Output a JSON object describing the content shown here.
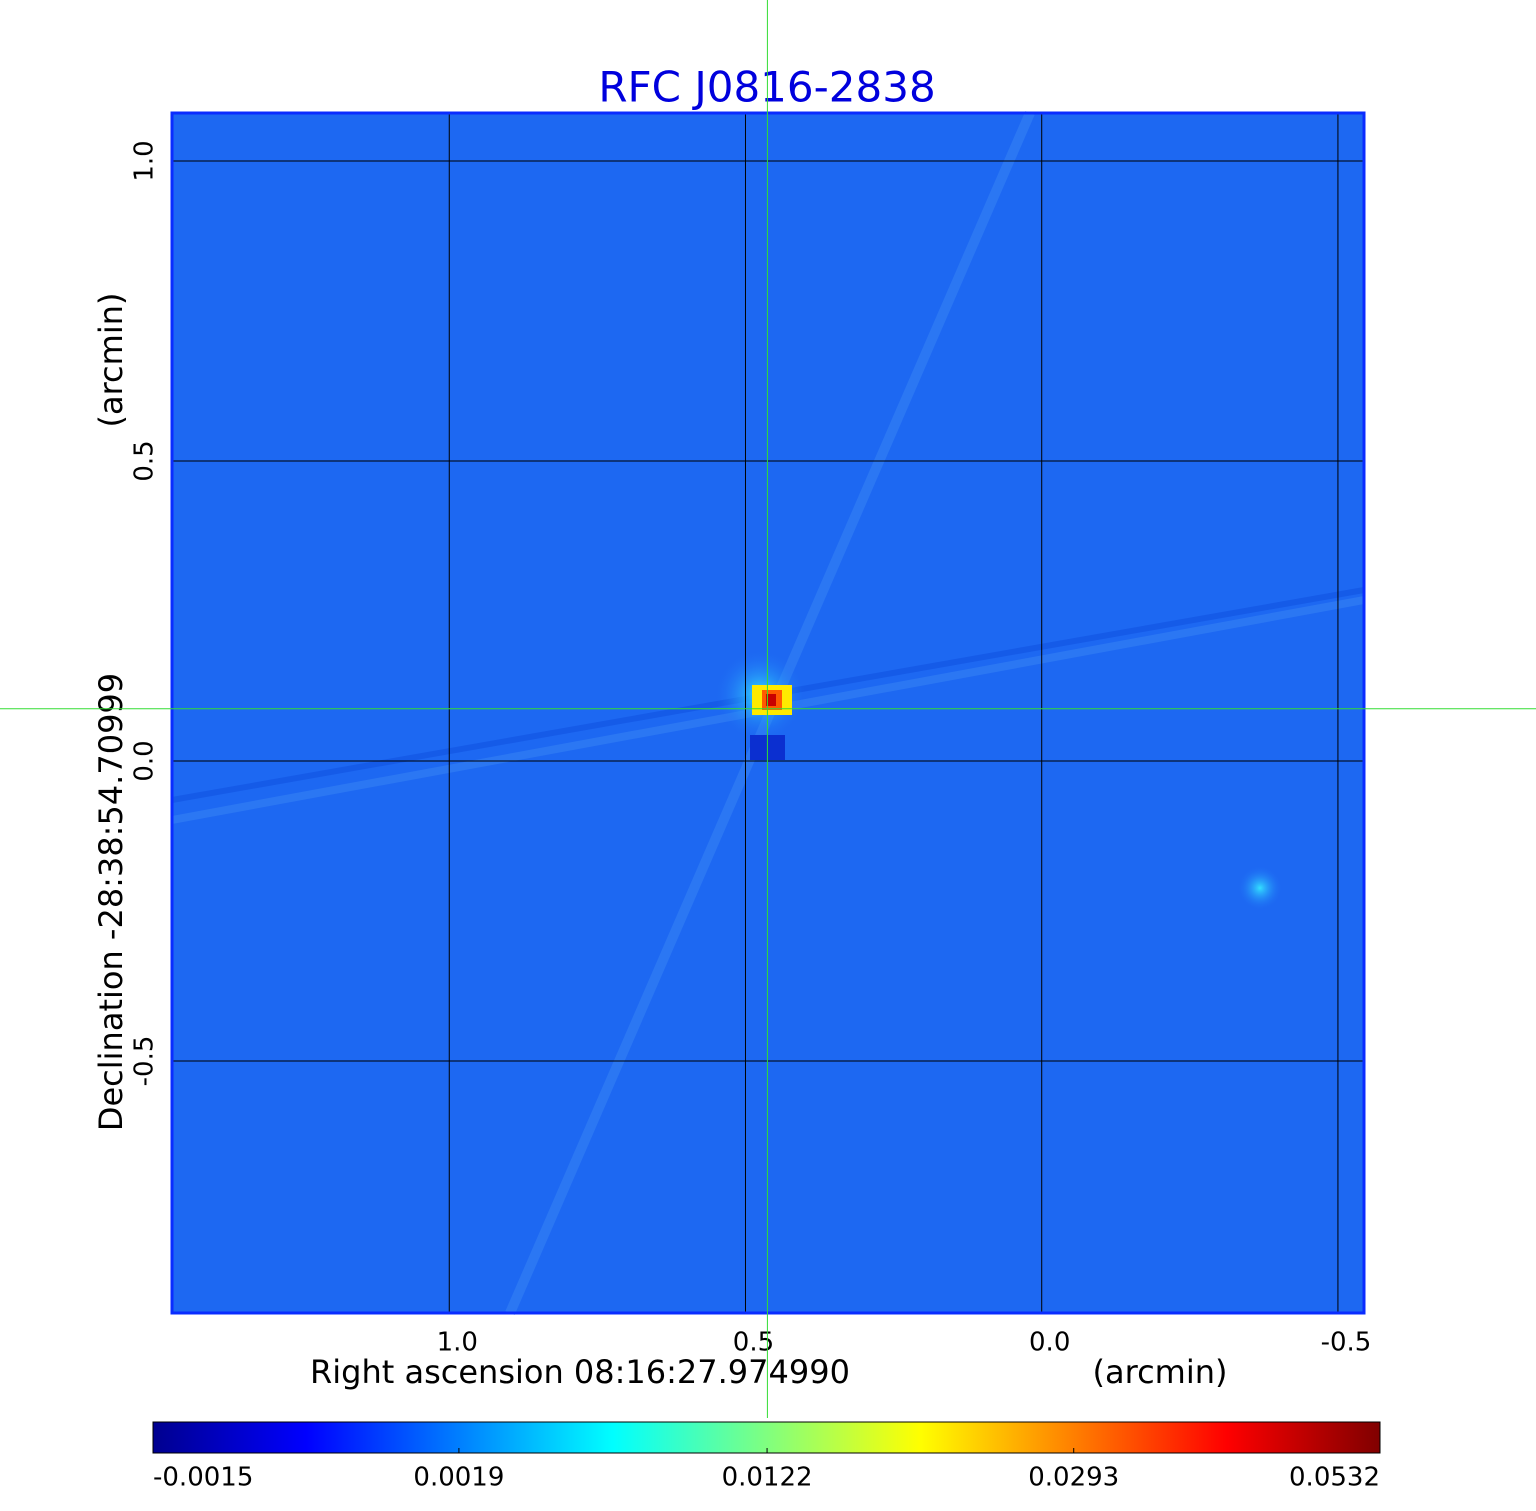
{
  "chart_data": {
    "type": "image",
    "title": "RFC J0816-2838",
    "x_label": "Right ascension  08:16:27.974990",
    "x_unit": "(arcmin)",
    "y_label": "Declination  -28:38:54.70999",
    "y_unit": "(arcmin)",
    "xlim": [
      1.468,
      -0.544
    ],
    "ylim": [
      -0.92,
      1.08
    ],
    "xticks": [
      {
        "value": 1,
        "label": "1.0"
      },
      0.5,
      {
        "value": 0,
        "label": "0.0"
      },
      -0.5
    ],
    "yticks": [
      {
        "value": 1,
        "label": "1.0"
      },
      0.5,
      {
        "value": 0,
        "label": "0.0"
      },
      -0.5
    ],
    "grid": true,
    "crosshair": {
      "x": 0.463,
      "y": 0.087,
      "color": "#33dd33"
    },
    "colorbar": {
      "scale": "sqrt",
      "clim": [
        -0.0015,
        0.0532
      ],
      "ticks": [
        -0.0015,
        0.0019,
        0.0122,
        0.0293,
        0.0532
      ]
    }
  }
}
